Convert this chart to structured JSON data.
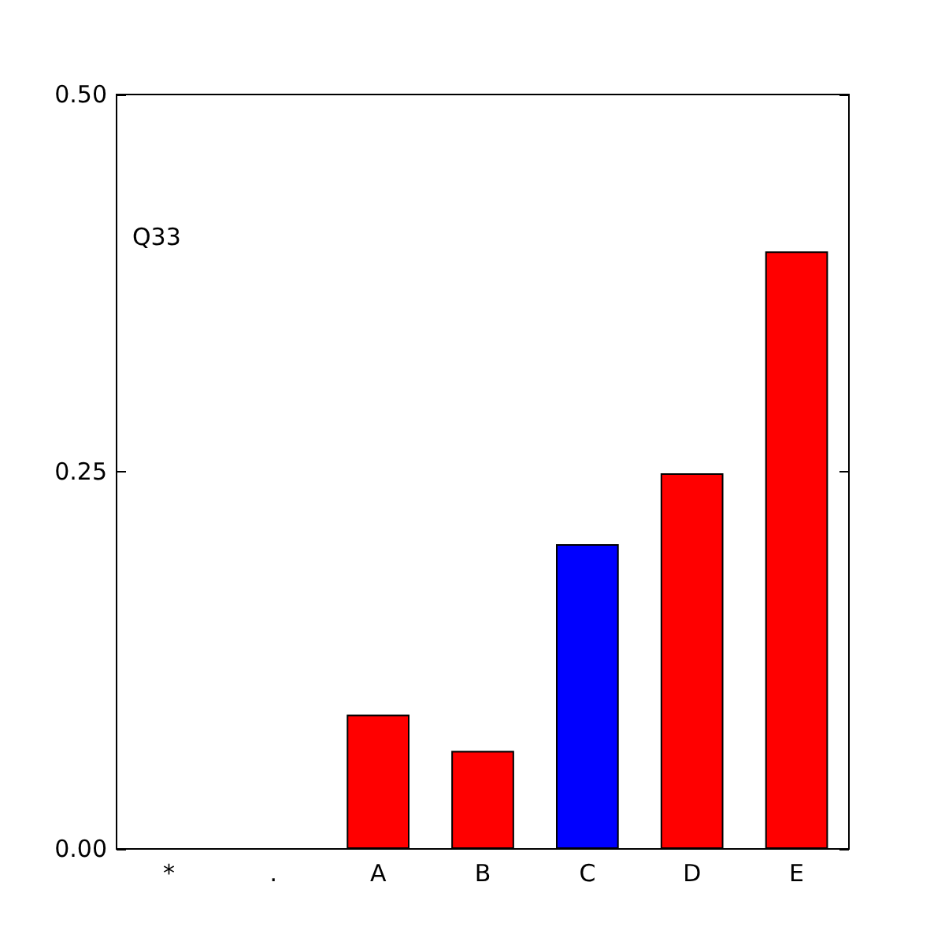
{
  "chart_data": {
    "type": "bar",
    "categories": [
      "*",
      ".",
      "A",
      "B",
      "C",
      "D",
      "E"
    ],
    "values": [
      0,
      0,
      0.089,
      0.065,
      0.202,
      0.249,
      0.396
    ],
    "colors": [
      "#000000",
      "#000000",
      "#ff0000",
      "#ff0000",
      "#0000ff",
      "#ff0000",
      "#ff0000"
    ],
    "ylim": [
      0,
      0.5
    ],
    "yticks": [
      {
        "value": 0,
        "label": "0.00"
      },
      {
        "value": 0.25,
        "label": "0.25"
      },
      {
        "value": 0.5,
        "label": "0.50"
      }
    ],
    "annotations": [
      "Q33"
    ],
    "grid": false
  }
}
